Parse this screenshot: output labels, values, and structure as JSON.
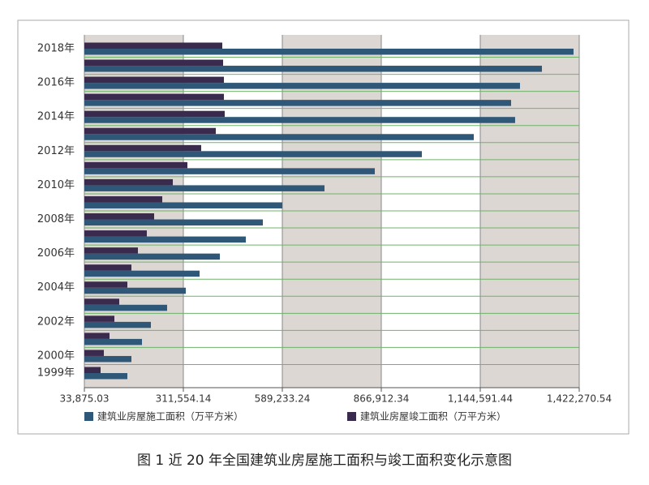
{
  "chart_data": {
    "type": "hbar",
    "title": "图 1  近 20 年全国建筑业房屋施工面积与竣工面积变化示意图",
    "categories": [
      "1999年",
      "2000年",
      null,
      "2002年",
      null,
      "2004年",
      null,
      "2006年",
      null,
      "2008年",
      null,
      "2010年",
      null,
      "2012年",
      null,
      "2014年",
      null,
      "2016年",
      null,
      "2018年"
    ],
    "series": [
      {
        "name": "建筑业房屋施工面积（万平方米）",
        "color": "#2f5878",
        "values": [
          154500,
          165900,
          195500,
          220500,
          266000,
          318400,
          357100,
          414000,
          486800,
          534600,
          589200,
          707600,
          848700,
          980700,
          1126400,
          1242400,
          1231100,
          1256100,
          1317600,
          1406300
        ]
      },
      {
        "name": "建筑业房屋竣工面积（万平方米）",
        "color": "#3a2a4e",
        "values": [
          79400,
          88500,
          104400,
          118100,
          131700,
          154500,
          165900,
          184100,
          209100,
          229600,
          252400,
          282000,
          322900,
          361600,
          402600,
          427600,
          425400,
          425400,
          423100,
          420800
        ]
      }
    ],
    "xlim": [
      33875.03,
      1422270.54
    ],
    "xticks": [
      {
        "value": 33875.03,
        "label": "33,875.03"
      },
      {
        "value": 311554.14,
        "label": "311,554.14"
      },
      {
        "value": 589233.24,
        "label": "589,233.24"
      },
      {
        "value": 866912.34,
        "label": "866,912.34"
      },
      {
        "value": 1144591.44,
        "label": "1,144,591.44"
      },
      {
        "value": 1422270.54,
        "label": "1,422,270.54"
      }
    ],
    "grid": true
  }
}
